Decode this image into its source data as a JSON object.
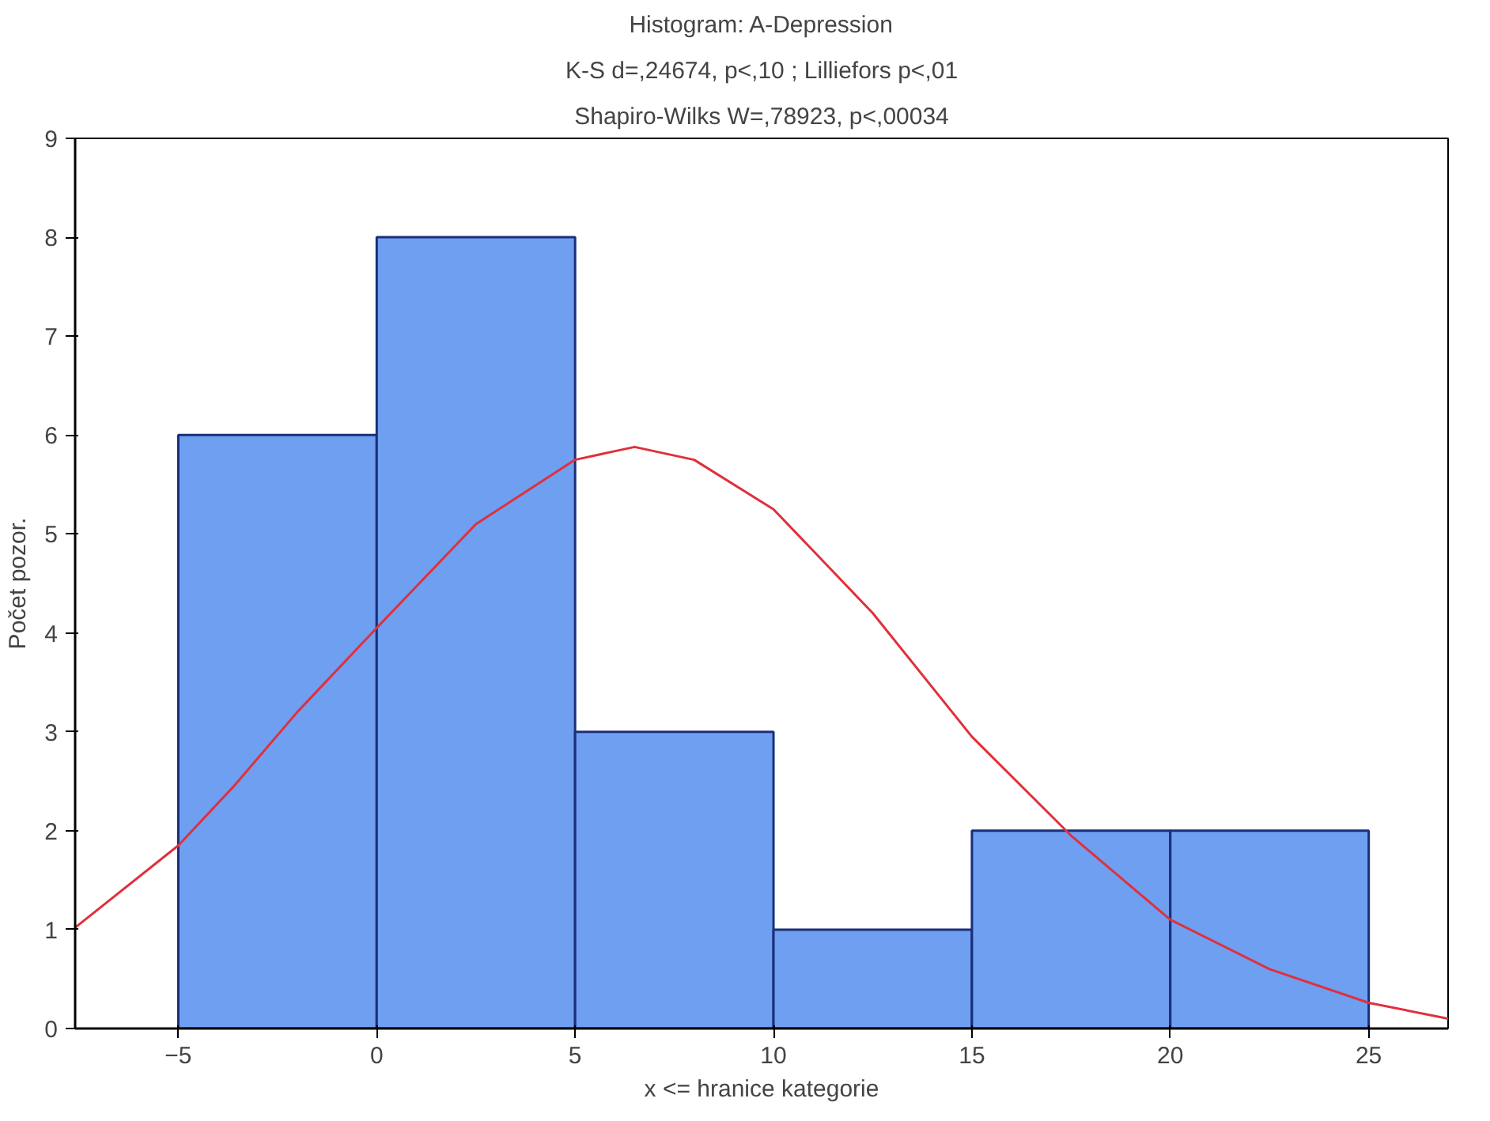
{
  "chart_data": {
    "type": "histogram",
    "title": "Histogram: A-Depression",
    "subtitle": "K-S d=,24674, p<,10 ; Lilliefors p<,01",
    "annotations": [
      "Shapiro-Wilks W=,78923, p<,00034"
    ],
    "xlabel": "x <= hranice kategorie",
    "ylabel": "Počet pozor.",
    "bins": [
      -5,
      0,
      5,
      10,
      15,
      20,
      25
    ],
    "values": [
      6,
      8,
      3,
      1,
      2,
      2
    ],
    "color": "#6f9ff0",
    "series": [
      {
        "type": "line",
        "color": "#e0303c",
        "x": [
          -7.6,
          -5,
          -3.6,
          -2,
          0,
          2.5,
          5,
          6.5,
          8,
          10,
          12.5,
          15,
          17.5,
          20,
          22.5,
          25,
          27
        ],
        "values": [
          1.02,
          1.85,
          2.45,
          3.2,
          4.05,
          5.1,
          5.75,
          5.88,
          5.75,
          5.25,
          4.2,
          2.95,
          1.95,
          1.1,
          0.6,
          0.26,
          0.1
        ]
      }
    ],
    "xlim": [
      -7.6,
      27
    ],
    "ylim": [
      0,
      9
    ],
    "xticks": [
      -5,
      0,
      5,
      10,
      15,
      20,
      25
    ],
    "yticks": [
      0,
      1,
      2,
      3,
      4,
      5,
      6,
      7,
      8,
      9
    ],
    "grid": false
  }
}
